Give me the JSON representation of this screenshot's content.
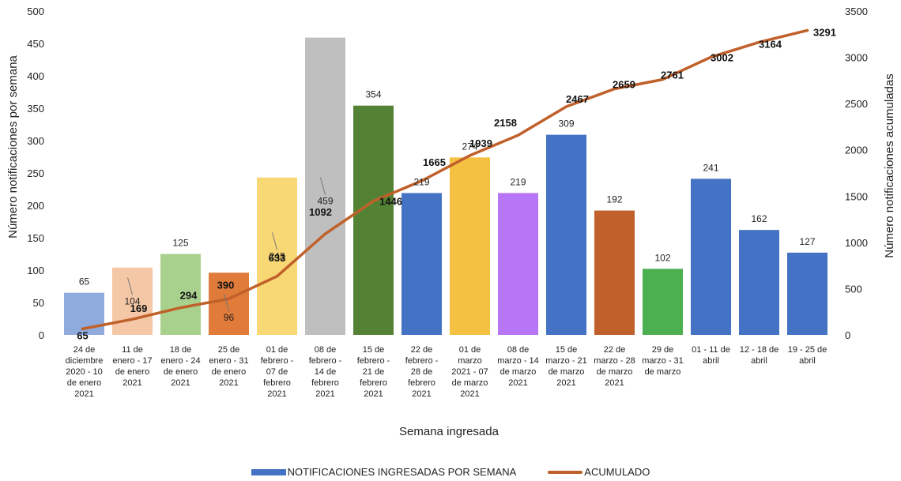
{
  "chart_data": {
    "type": "bar",
    "title": "",
    "xlabel": "Semana ingresada",
    "ylabel": "Número notificaciones por semana",
    "y2label": "Número notificaciones acumuladas",
    "ylim": [
      0,
      500
    ],
    "y2lim": [
      0,
      3500
    ],
    "yticks": [
      "0",
      "50",
      "100",
      "150",
      "200",
      "250",
      "300",
      "350",
      "400",
      "450",
      "500"
    ],
    "y2ticks": [
      "0",
      "500",
      "1000",
      "1500",
      "2000",
      "2500",
      "3000",
      "3500"
    ],
    "grid": false,
    "legend_position": "bottom",
    "categories": [
      [
        "24 de",
        "diciembre",
        "2020 - 10",
        "de enero",
        "2021"
      ],
      [
        "11 de",
        "enero - 17",
        "de enero",
        "2021"
      ],
      [
        "18 de",
        "enero - 24",
        "de enero",
        "2021"
      ],
      [
        "25 de",
        "enero - 31",
        "de enero",
        "2021"
      ],
      [
        "01 de",
        "febrero -",
        "07 de",
        "febrero",
        "2021"
      ],
      [
        "08 de",
        "febrero -",
        "14 de",
        "febrero",
        "2021"
      ],
      [
        "15 de",
        "febrero -",
        "21 de",
        "febrero",
        "2021"
      ],
      [
        "22 de",
        "febrero -",
        "28 de",
        "febrero",
        "2021"
      ],
      [
        "01 de",
        "marzo",
        "2021 - 07",
        "de marzo",
        "2021"
      ],
      [
        "08 de",
        "marzo - 14",
        "de marzo",
        "2021"
      ],
      [
        "15 de",
        "marzo - 21",
        "de marzo",
        "2021"
      ],
      [
        "22 de",
        "marzo - 28",
        "de marzo",
        "2021"
      ],
      [
        "29 de",
        "marzo - 31",
        "de marzo"
      ],
      [
        "01 - 11 de",
        "abril"
      ],
      [
        "12 - 18 de",
        "abril"
      ],
      [
        "19 - 25 de",
        "abril"
      ]
    ],
    "series": [
      {
        "name": "NOTIFICACIONES INGRESADAS POR SEMANA",
        "type": "bar",
        "values": [
          65,
          104,
          125,
          96,
          243,
          459,
          354,
          219,
          274,
          219,
          309,
          192,
          102,
          241,
          162,
          127
        ],
        "colors": [
          "#8faadc",
          "#f4c7a6",
          "#a9d18e",
          "#e07b39",
          "#f8d775",
          "#bfbfbf",
          "#548235",
          "#4472c4",
          "#f4c142",
          "#b676f5",
          "#4472c4",
          "#c0602a",
          "#4caf50",
          "#4472c4",
          "#4472c4",
          "#4472c4"
        ]
      },
      {
        "name": "ACUMULADO",
        "type": "line",
        "axis": "right",
        "color": "#c0602a",
        "values": [
          65,
          169,
          294,
          390,
          633,
          1092,
          1446,
          1665,
          1939,
          2158,
          2467,
          2659,
          2761,
          3002,
          3164,
          3291
        ]
      }
    ],
    "legend": [
      {
        "label": "NOTIFICACIONES INGRESADAS POR SEMANA",
        "color": "#4472c4"
      },
      {
        "label": "ACUMULADO",
        "color": "#c0602a"
      }
    ]
  }
}
